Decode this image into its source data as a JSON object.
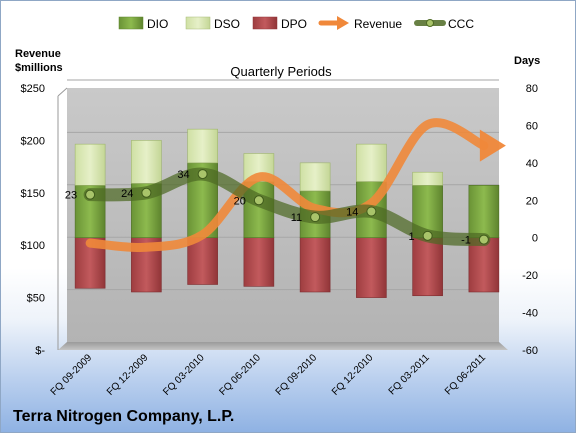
{
  "chart_data": {
    "type": "bar",
    "title": "Quarterly Periods",
    "company": "Terra Nitrogen Company, L.P.",
    "left_axis_label": [
      "Revenue",
      "$millions"
    ],
    "right_axis_label": "Days",
    "categories": [
      "FQ 09-2009",
      "FQ 12-2009",
      "FQ 03-2010",
      "FQ 06-2010",
      "FQ 09-2010",
      "FQ 12-2010",
      "FQ 03-2011",
      "FQ 06-2011"
    ],
    "left_ticks": [
      "$-",
      "$50",
      "$100",
      "$150",
      "$200",
      "$250"
    ],
    "left_range": [
      0,
      250
    ],
    "right_ticks": [
      "-60",
      "-40",
      "-20",
      "0",
      "20",
      "40",
      "60",
      "80"
    ],
    "right_range": [
      -60,
      80
    ],
    "legend": [
      "DIO",
      "DSO",
      "DPO",
      "Revenue",
      "CCC"
    ],
    "legend_position": "top",
    "grid": true,
    "days_series": {
      "dpo_start": [
        -27,
        -29,
        -25,
        -26,
        -29,
        -32,
        -31,
        -29
      ],
      "dpo_end": [
        0,
        0,
        0,
        0,
        0,
        0,
        0,
        0
      ],
      "dio_end": [
        28,
        29,
        40,
        30,
        25,
        30,
        28,
        28
      ],
      "dso_end": [
        50,
        52,
        58,
        45,
        40,
        50,
        35,
        28
      ]
    },
    "revenue": [
      102,
      98,
      110,
      165,
      135,
      140,
      215,
      195
    ],
    "ccc": [
      23,
      24,
      34,
      20,
      11,
      14,
      1,
      -1
    ],
    "ccc_labels": [
      "23",
      "24",
      "34",
      "20",
      "11",
      "14",
      "1",
      "-1"
    ],
    "colors": {
      "dio": "#7ba043",
      "dso": "#dbe8b6",
      "dpo": "#b34b4e",
      "revenue": "#f0883a",
      "ccc": "#4e6a24",
      "plot_bg": "#bfbfbf",
      "grid": "#a6a6a6"
    }
  }
}
